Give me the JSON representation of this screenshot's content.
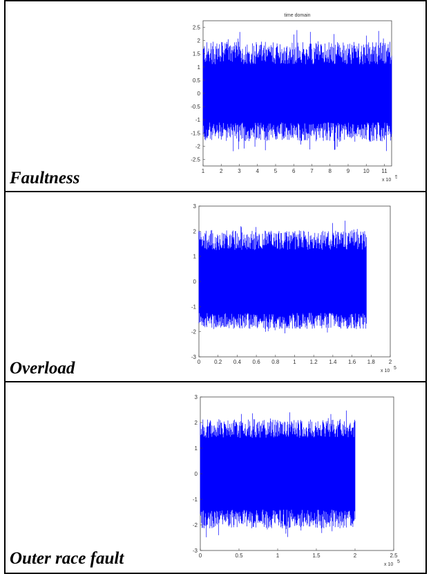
{
  "rows": [
    {
      "label": "Faultness"
    },
    {
      "label": "Overload"
    },
    {
      "label": "Outer race fault"
    }
  ],
  "signal_color": "#0000ff",
  "chart_data": [
    {
      "type": "line",
      "title": "time domain",
      "xlim": [
        1,
        11.4
      ],
      "ylim": [
        -2.75,
        2.75
      ],
      "xticks": [
        "1",
        "2",
        "3",
        "4",
        "5",
        "6",
        "7",
        "8",
        "9",
        "10",
        "11"
      ],
      "yticks": [
        "2.5",
        "2",
        "1.5",
        "1",
        "0.5",
        "0",
        "-0.5",
        "-1",
        "-1.5",
        "-2",
        "-2.5"
      ],
      "x_multiplier": "x 10",
      "x_exponent": "5",
      "signal_x_range": [
        1,
        11.4
      ],
      "band_half_amplitude": 1.1,
      "spike_max": 2.55,
      "spike_min": -2.2,
      "series": [
        {
          "values_summary": "dense vibration signal, amplitude mostly within ±1.1, peaks up to about ±2.5"
        }
      ]
    },
    {
      "type": "line",
      "title": "",
      "xlim": [
        0,
        2
      ],
      "ylim": [
        -3,
        3
      ],
      "xticks": [
        "0",
        "0.2",
        "0.4",
        "0.6",
        "0.8",
        "1",
        "1.2",
        "1.4",
        "1.6",
        "1.8",
        "2"
      ],
      "yticks": [
        "3",
        "2",
        "1",
        "0",
        "-1",
        "-2",
        "-3"
      ],
      "x_multiplier": "x 10",
      "x_exponent": "5",
      "signal_x_range": [
        0,
        1.75
      ],
      "band_half_amplitude": 1.25,
      "spike_max": 2.5,
      "spike_min": -2.1,
      "series": [
        {
          "values_summary": "dense vibration signal, amplitude mostly within ±1.3, ends near x=1.75"
        }
      ]
    },
    {
      "type": "line",
      "title": "",
      "xlim": [
        0,
        2.5
      ],
      "ylim": [
        -3,
        3
      ],
      "xticks": [
        "0",
        "0.5",
        "1",
        "1.5",
        "2",
        "2.5"
      ],
      "yticks": [
        "3",
        "2",
        "1",
        "0",
        "-1",
        "-2",
        "-3"
      ],
      "x_multiplier": "x 10",
      "x_exponent": "5",
      "signal_x_range": [
        0,
        2.0
      ],
      "band_half_amplitude": 1.4,
      "spike_max": 2.5,
      "spike_min": -2.5,
      "series": [
        {
          "values_summary": "dense vibration signal, amplitude mostly within ±1.4, ends near x=2.0"
        }
      ]
    }
  ]
}
